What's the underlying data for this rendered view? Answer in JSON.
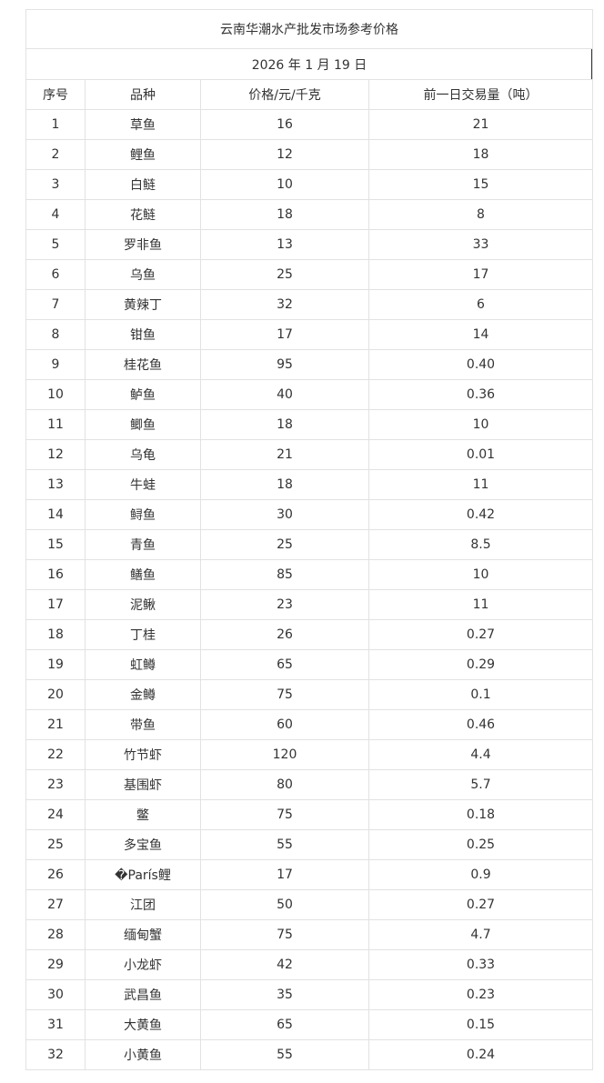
{
  "title": "云南华潮水产批发市场参考价格",
  "date": "2026 年 1 月 19 日",
  "headers": [
    "序号",
    "品种",
    "价格/元/千克",
    "前一日交易量（吨）"
  ],
  "rows": [
    [
      "1",
      "草鱼",
      "16",
      "21"
    ],
    [
      "2",
      "鲤鱼",
      "12",
      "18"
    ],
    [
      "3",
      "白鲢",
      "10",
      "15"
    ],
    [
      "4",
      "花鲢",
      "18",
      "8"
    ],
    [
      "5",
      "罗非鱼",
      "13",
      "33"
    ],
    [
      "6",
      "乌鱼",
      "25",
      "17"
    ],
    [
      "7",
      "黄辣丁",
      "32",
      "6"
    ],
    [
      "8",
      "钳鱼",
      "17",
      "14"
    ],
    [
      "9",
      "桂花鱼",
      "95",
      "0.40"
    ],
    [
      "10",
      "鲈鱼",
      "40",
      "0.36"
    ],
    [
      "11",
      "鲫鱼",
      "18",
      "10"
    ],
    [
      "12",
      "乌龟",
      "21",
      "0.01"
    ],
    [
      "13",
      "牛蛙",
      "18",
      "11"
    ],
    [
      "14",
      "鲟鱼",
      "30",
      "0.42"
    ],
    [
      "15",
      "青鱼",
      "25",
      "8.5"
    ],
    [
      "16",
      "鳝鱼",
      "85",
      "10"
    ],
    [
      "17",
      "泥鳅",
      "23",
      "11"
    ],
    [
      "18",
      "丁桂",
      "26",
      "0.27"
    ],
    [
      "19",
      "虹鳟",
      "65",
      "0.29"
    ],
    [
      "20",
      "金鳟",
      "75",
      "0.1"
    ],
    [
      "21",
      "带鱼",
      "60",
      "0.46"
    ],
    [
      "22",
      "竹节虾",
      "120",
      "4.4"
    ],
    [
      "23",
      "基围虾",
      "80",
      "5.7"
    ],
    [
      "24",
      "鳖",
      "75",
      "0.18"
    ],
    [
      "25",
      "多宝鱼",
      "55",
      "0.25"
    ],
    [
      "26",
      "�París鲤",
      "17",
      "0.9"
    ],
    [
      "27",
      "江团",
      "50",
      "0.27"
    ],
    [
      "28",
      "缅甸蟹",
      "75",
      "4.7"
    ],
    [
      "29",
      "小龙虾",
      "42",
      "0.33"
    ],
    [
      "30",
      "武昌鱼",
      "35",
      "0.23"
    ],
    [
      "31",
      "大黄鱼",
      "65",
      "0.15"
    ],
    [
      "32",
      "小黄鱼",
      "55",
      "0.24"
    ]
  ]
}
